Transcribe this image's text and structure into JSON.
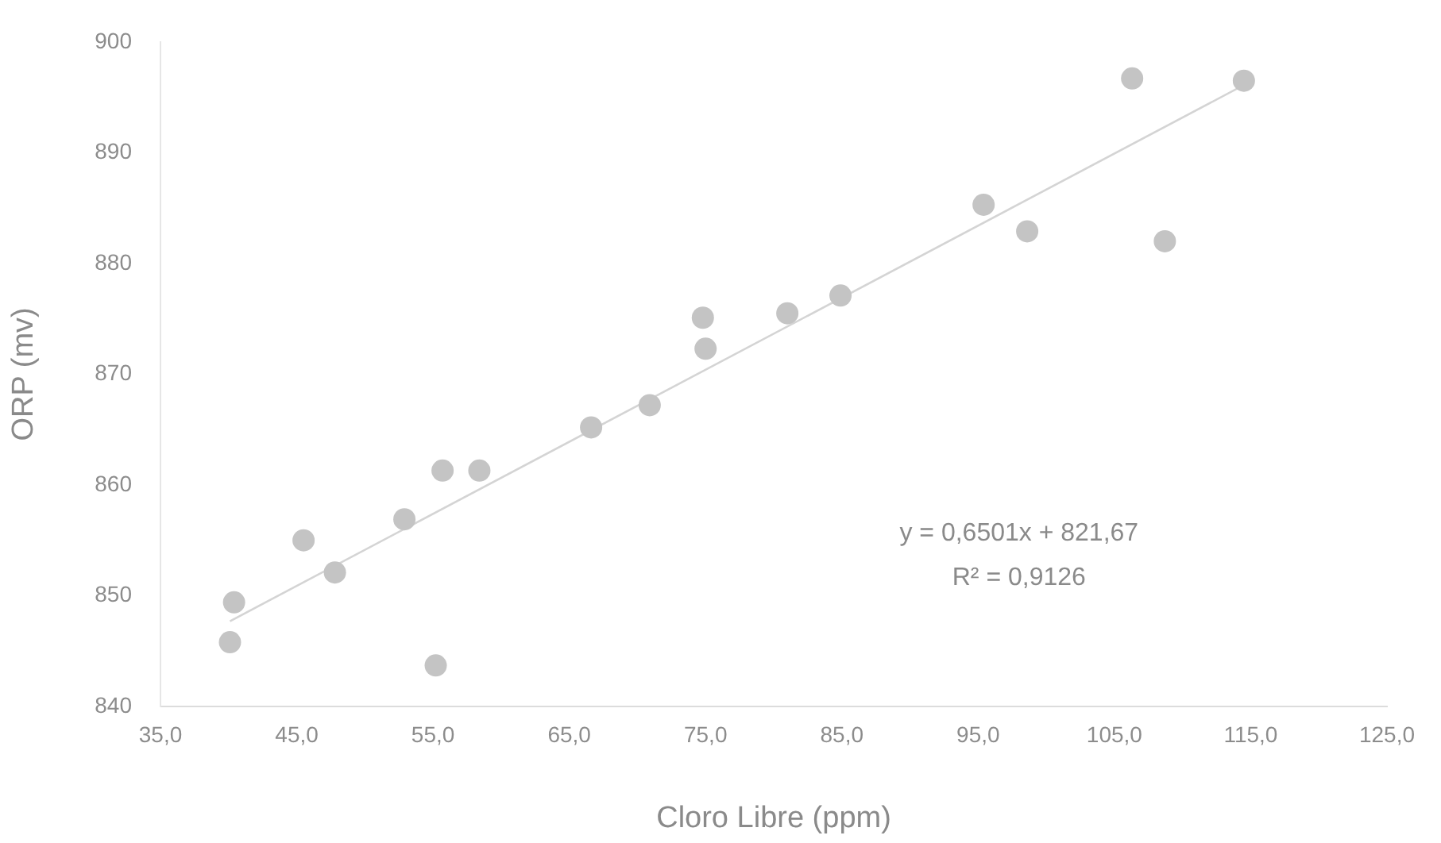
{
  "chart_data": {
    "type": "scatter",
    "xlabel": "Cloro Libre (ppm)",
    "ylabel": "ORP (mv)",
    "xlim": [
      35,
      125
    ],
    "xticks": [
      {
        "value": 35,
        "label": "35,0"
      },
      {
        "value": 45,
        "label": "45,0"
      },
      {
        "value": 55,
        "label": "55,0"
      },
      {
        "value": 65,
        "label": "65,0"
      },
      {
        "value": 75,
        "label": "75,0"
      },
      {
        "value": 85,
        "label": "85,0"
      },
      {
        "value": 95,
        "label": "95,0"
      },
      {
        "value": 105,
        "label": "105,0"
      },
      {
        "value": 115,
        "label": "115,0"
      },
      {
        "value": 125,
        "label": "125,0"
      }
    ],
    "ylim": [
      840,
      900
    ],
    "yticks": [
      840,
      850,
      860,
      870,
      880,
      890,
      900
    ],
    "grid": false,
    "legend": false,
    "marker": "circle",
    "series": [
      {
        "color": "#c4c4c4",
        "x": [
          40.1,
          40.4,
          45.5,
          47.8,
          52.9,
          55.2,
          55.7,
          58.4,
          66.6,
          70.9,
          74.8,
          75.0,
          81.0,
          84.9,
          95.4,
          98.6,
          106.3,
          108.7,
          114.5
        ],
        "values": [
          845.8,
          849.4,
          855.0,
          852.1,
          856.9,
          843.7,
          861.3,
          861.3,
          865.2,
          867.2,
          875.1,
          872.3,
          875.5,
          877.1,
          885.3,
          882.9,
          896.7,
          882.0,
          896.5
        ]
      },
      {
        "type": "line",
        "color": "#d4d4d4",
        "marker": "none",
        "x": [
          40.1,
          114.5
        ],
        "values": [
          847.7,
          896.1
        ]
      }
    ],
    "annotations": [
      "y = 0,6501x + 821,67",
      "R² = 0,9126"
    ]
  }
}
